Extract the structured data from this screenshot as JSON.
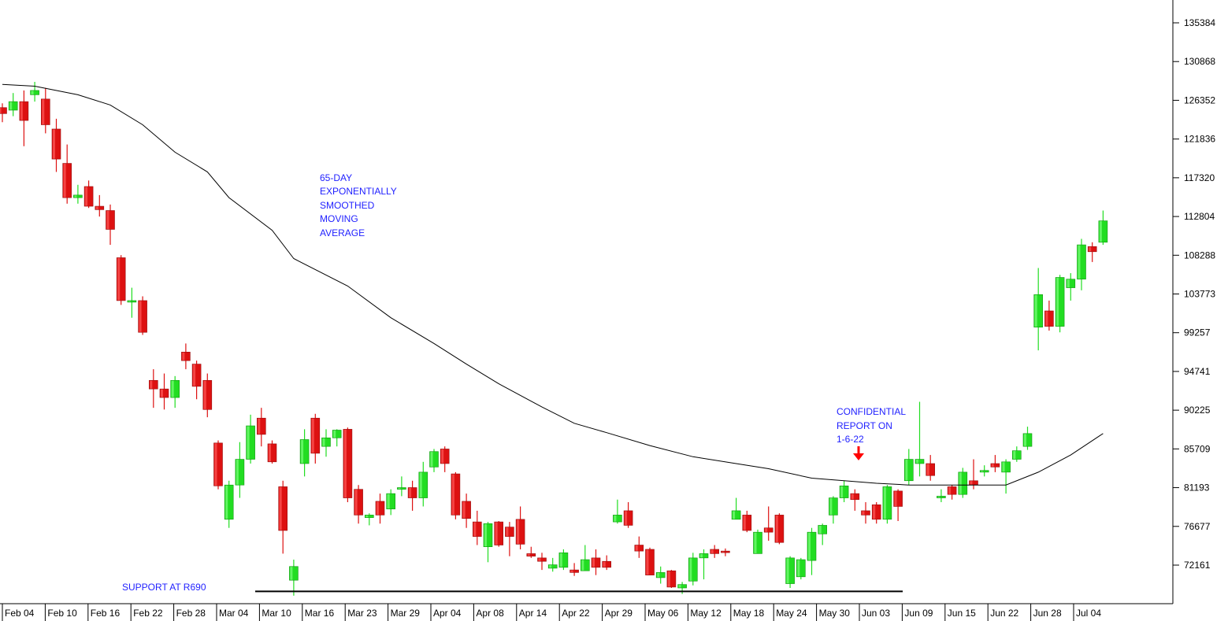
{
  "chart_data": {
    "type": "candlestick",
    "y_ticks": [
      135384,
      130868,
      126352,
      121836,
      117320,
      112804,
      108288,
      103773,
      99257,
      94741,
      90225,
      85709,
      81193,
      76677,
      72161
    ],
    "x_ticks": [
      "Feb 04",
      "Feb 10",
      "Feb 16",
      "Feb 22",
      "Feb 28",
      "Mar 04",
      "Mar 10",
      "Mar 16",
      "Mar 23",
      "Mar 29",
      "Apr 04",
      "Apr 08",
      "Apr 14",
      "Apr 22",
      "Apr 29",
      "May 06",
      "May 12",
      "May 18",
      "May 24",
      "May 30",
      "Jun 03",
      "Jun 09",
      "Jun 15",
      "Jun 22",
      "Jun 28",
      "Jul 04"
    ],
    "candles": [
      [
        0,
        125500,
        124800,
        126000,
        123800
      ],
      [
        1,
        125200,
        126200,
        127200,
        124500
      ],
      [
        2,
        126200,
        124000,
        127500,
        121000
      ],
      [
        3,
        127000,
        127500,
        128500,
        126200
      ],
      [
        4,
        126500,
        123500,
        127800,
        122500
      ],
      [
        5,
        123000,
        119500,
        124200,
        118000
      ],
      [
        6,
        119000,
        115000,
        121200,
        114300
      ],
      [
        7,
        115000,
        115300,
        116500,
        114300
      ],
      [
        8,
        116300,
        114000,
        117000,
        113800
      ],
      [
        9,
        114000,
        113600,
        115300,
        112800
      ],
      [
        10,
        113500,
        111300,
        114200,
        109500
      ],
      [
        11,
        108000,
        103000,
        108300,
        102500
      ],
      [
        12,
        103000,
        103000,
        104500,
        101000
      ],
      [
        13,
        103000,
        99300,
        103500,
        99000
      ],
      [
        14,
        93700,
        92700,
        95000,
        90500
      ],
      [
        15,
        92700,
        91700,
        94500,
        90300
      ],
      [
        16,
        91700,
        93700,
        94200,
        90500
      ],
      [
        17,
        97000,
        96000,
        98000,
        95000
      ],
      [
        18,
        95600,
        93000,
        96000,
        91500
      ],
      [
        19,
        93700,
        90300,
        94500,
        89400
      ],
      [
        20,
        86400,
        81400,
        86700,
        81000
      ],
      [
        21,
        77500,
        81500,
        82000,
        76500
      ],
      [
        22,
        81500,
        84500,
        86500,
        80000
      ],
      [
        23,
        84500,
        88400,
        89700,
        84000
      ],
      [
        24,
        89300,
        87400,
        90500,
        86000
      ],
      [
        25,
        86300,
        84200,
        86700,
        84000
      ],
      [
        26,
        81300,
        76200,
        82000,
        73500
      ],
      [
        27,
        70400,
        72000,
        72800,
        68600
      ],
      [
        28,
        84000,
        86800,
        88000,
        82500
      ],
      [
        29,
        89300,
        85200,
        89800,
        84000
      ],
      [
        30,
        86000,
        87000,
        88000,
        84800
      ],
      [
        31,
        87000,
        87900,
        88000,
        86000
      ],
      [
        32,
        88000,
        80000,
        88200,
        79500
      ],
      [
        33,
        81000,
        78000,
        81500,
        77000
      ],
      [
        34,
        77700,
        78000,
        78200,
        76800
      ],
      [
        35,
        79600,
        78000,
        80500,
        77000
      ],
      [
        36,
        78700,
        80500,
        81000,
        78000
      ],
      [
        37,
        81000,
        81200,
        82500,
        80200
      ],
      [
        38,
        81200,
        80000,
        82000,
        78500
      ],
      [
        39,
        80000,
        83000,
        84200,
        79000
      ],
      [
        40,
        83600,
        85400,
        85700,
        83000
      ],
      [
        41,
        85700,
        84000,
        86000,
        83000
      ],
      [
        42,
        82800,
        78000,
        83000,
        77500
      ],
      [
        43,
        79600,
        77600,
        80500,
        76500
      ],
      [
        44,
        77200,
        75500,
        78500,
        74500
      ],
      [
        45,
        74300,
        77000,
        77200,
        72500
      ],
      [
        46,
        77200,
        74500,
        77300,
        74300
      ],
      [
        47,
        76600,
        75500,
        77200,
        73200
      ],
      [
        48,
        77500,
        74600,
        79000,
        74000
      ],
      [
        49,
        73500,
        73200,
        74300,
        73000
      ],
      [
        50,
        73000,
        72600,
        73600,
        71600
      ],
      [
        51,
        71800,
        72200,
        73000,
        71400
      ],
      [
        52,
        71900,
        73600,
        74000,
        71600
      ],
      [
        53,
        71600,
        71300,
        72400,
        70900
      ],
      [
        54,
        71500,
        72800,
        74500,
        71500
      ],
      [
        55,
        73000,
        71900,
        74000,
        71000
      ],
      [
        56,
        72600,
        71900,
        73300,
        71600
      ],
      [
        57,
        77200,
        78000,
        79800,
        77000
      ],
      [
        58,
        78500,
        76800,
        79500,
        76500
      ],
      [
        59,
        74500,
        73800,
        75500,
        73000
      ],
      [
        60,
        74000,
        71000,
        74200,
        71000
      ],
      [
        61,
        70700,
        71300,
        72000,
        70000
      ],
      [
        62,
        71500,
        69600,
        71600,
        69500
      ],
      [
        63,
        69500,
        69900,
        70200,
        68800
      ],
      [
        64,
        70300,
        73000,
        73600,
        69800
      ],
      [
        65,
        73000,
        73500,
        74000,
        70500
      ],
      [
        66,
        74000,
        73500,
        74500,
        73000
      ],
      [
        67,
        73800,
        73700,
        74100,
        73200
      ],
      [
        68,
        77500,
        78500,
        80000,
        77500
      ],
      [
        69,
        78000,
        76200,
        78500,
        76000
      ],
      [
        70,
        73500,
        76000,
        76300,
        73500
      ],
      [
        71,
        76500,
        76000,
        79000,
        75000
      ],
      [
        72,
        78000,
        74800,
        78200,
        74600
      ],
      [
        73,
        70000,
        73000,
        73200,
        69500
      ],
      [
        74,
        70800,
        72800,
        73000,
        70500
      ],
      [
        75,
        72700,
        76000,
        76500,
        71000
      ],
      [
        76,
        75800,
        76800,
        77000,
        74500
      ],
      [
        77,
        78000,
        80000,
        80200,
        77000
      ],
      [
        78,
        80000,
        81400,
        82000,
        79500
      ],
      [
        79,
        80500,
        79800,
        81000,
        78500
      ],
      [
        80,
        78500,
        78000,
        79500,
        77000
      ],
      [
        81,
        79200,
        77500,
        79500,
        77000
      ],
      [
        82,
        77500,
        81300,
        81500,
        77000
      ],
      [
        83,
        80800,
        79000,
        81000,
        77300
      ],
      [
        84,
        82000,
        84500,
        85700,
        81500
      ],
      [
        85,
        84000,
        84500,
        91200,
        82500
      ],
      [
        86,
        84000,
        82600,
        85000,
        82000
      ],
      [
        87,
        80000,
        80200,
        81000,
        79500
      ],
      [
        88,
        81300,
        80400,
        81500,
        79800
      ],
      [
        89,
        80400,
        83000,
        83500,
        80000
      ],
      [
        90,
        82000,
        81500,
        84500,
        81000
      ],
      [
        91,
        83000,
        83200,
        83800,
        82500
      ],
      [
        92,
        84000,
        83600,
        85000,
        83000
      ],
      [
        93,
        83000,
        84200,
        84500,
        80500
      ],
      [
        94,
        84500,
        85500,
        86000,
        84200
      ],
      [
        95,
        86000,
        87500,
        88300,
        85600
      ],
      [
        96,
        99900,
        103700,
        106800,
        97200
      ],
      [
        97,
        101800,
        100000,
        103000,
        99500
      ],
      [
        98,
        100000,
        105700,
        106000,
        99300
      ],
      [
        99,
        104500,
        105500,
        106200,
        103000
      ],
      [
        100,
        105500,
        109500,
        110200,
        104200
      ],
      [
        101,
        109300,
        108700,
        109800,
        107500
      ],
      [
        102,
        109800,
        112300,
        113500,
        109500
      ]
    ],
    "moving_average": [
      [
        0,
        128200
      ],
      [
        3,
        128000
      ],
      [
        7,
        127000
      ],
      [
        10,
        125800
      ],
      [
        13,
        123500
      ],
      [
        16,
        120300
      ],
      [
        19,
        118000
      ],
      [
        21,
        115000
      ],
      [
        25,
        111200
      ],
      [
        27,
        107900
      ],
      [
        32,
        104700
      ],
      [
        36,
        101000
      ],
      [
        40,
        98000
      ],
      [
        43,
        95600
      ],
      [
        46,
        93300
      ],
      [
        50,
        90600
      ],
      [
        53,
        88700
      ],
      [
        56,
        87600
      ],
      [
        60,
        86100
      ],
      [
        64,
        84800
      ],
      [
        68,
        84000
      ],
      [
        71,
        83400
      ],
      [
        75,
        82300
      ],
      [
        78,
        82000
      ],
      [
        81,
        81700
      ],
      [
        84,
        81500
      ],
      [
        87,
        81500
      ],
      [
        90,
        81500
      ],
      [
        93,
        81500
      ],
      [
        96,
        83000
      ],
      [
        99,
        85000
      ],
      [
        102,
        87500
      ]
    ],
    "support": {
      "label": "SUPPORT AT R690",
      "value": 69100
    },
    "annotations": [
      "65-DAY",
      "EXPONENTIALLY",
      "SMOOTHED",
      "MOVING",
      "AVERAGE",
      "CONFIDENTIAL",
      "REPORT ON",
      "1-6-22"
    ],
    "colors": {
      "up": "#22dd22",
      "down": "#dd1111",
      "ma": "#000000",
      "annotation": "#1f1fff",
      "arrow": "#ff0000"
    }
  }
}
